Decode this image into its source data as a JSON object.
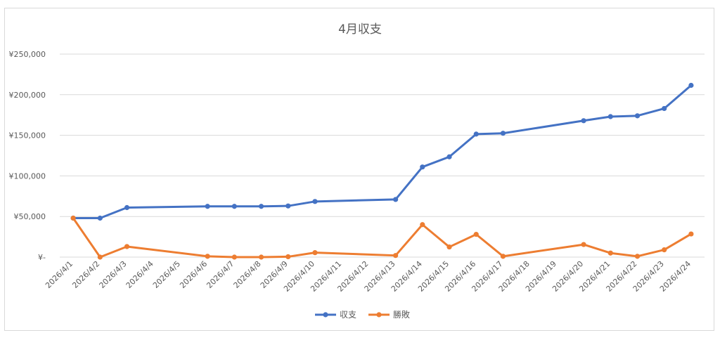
{
  "chart_data": {
    "type": "line",
    "title": "4月収支",
    "categories": [
      "2026/4/1",
      "2026/4/2",
      "2026/4/3",
      "2026/4/4",
      "2026/4/5",
      "2026/4/6",
      "2026/4/7",
      "2026/4/8",
      "2026/4/9",
      "2026/4/10",
      "2026/4/11",
      "2026/4/12",
      "2026/4/13",
      "2026/4/14",
      "2026/4/15",
      "2026/4/16",
      "2026/4/17",
      "2026/4/18",
      "2026/4/19",
      "2026/4/20",
      "2026/4/21",
      "2026/4/22",
      "2026/4/23",
      "2026/4/24"
    ],
    "series": [
      {
        "name": "収支",
        "color": "#4472C4",
        "values": [
          48000,
          48000,
          61000,
          null,
          null,
          62500,
          62500,
          62500,
          63000,
          68500,
          null,
          null,
          71000,
          111000,
          123500,
          151500,
          152500,
          null,
          null,
          168000,
          173000,
          174000,
          183000,
          211500
        ]
      },
      {
        "name": "勝敗",
        "color": "#ED7D31",
        "values": [
          48000,
          0,
          13000,
          null,
          null,
          1000,
          0,
          0,
          500,
          5500,
          null,
          null,
          2000,
          40000,
          12500,
          28000,
          1000,
          null,
          null,
          15500,
          5000,
          1000,
          9000,
          28500
        ]
      }
    ],
    "y_tick_labels": [
      "¥-",
      "¥50,000",
      "¥100,000",
      "¥150,000",
      "¥200,000",
      "¥250,000"
    ],
    "ylim": [
      0,
      250000
    ],
    "grid": true,
    "legend_position": "bottom"
  }
}
